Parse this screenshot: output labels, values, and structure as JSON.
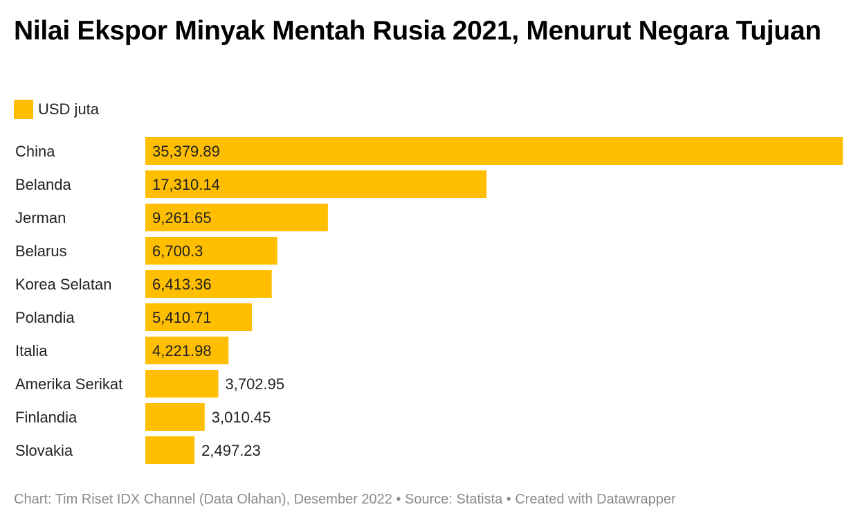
{
  "title": "Nilai Ekspor Minyak Mentah Rusia 2021, Menurut Negara Tujuan",
  "legend": {
    "label": "USD juta",
    "color": "#ffbf00"
  },
  "colors": {
    "bar": "#ffbf00",
    "label_text": "#222222",
    "footer_text": "#8a8a8a"
  },
  "chart_data": {
    "type": "bar",
    "orientation": "horizontal",
    "title": "Nilai Ekspor Minyak Mentah Rusia 2021, Menurut Negara Tujuan",
    "categories": [
      "China",
      "Belanda",
      "Jerman",
      "Belarus",
      "Korea Selatan",
      "Polandia",
      "Italia",
      "Amerika Serikat",
      "Finlandia",
      "Slovakia"
    ],
    "series": [
      {
        "name": "USD juta",
        "values": [
          35379.89,
          17310.14,
          9261.65,
          6700.3,
          6413.36,
          5410.71,
          4221.98,
          3702.95,
          3010.45,
          2497.23
        ],
        "labels": [
          "35,379.89",
          "17,310.14",
          "9,261.65",
          "6,700.3",
          "6,413.36",
          "5,410.71",
          "4,221.98",
          "3,702.95",
          "3,010.45",
          "2,497.23"
        ]
      }
    ],
    "xlim": [
      0,
      35379.89
    ],
    "grid": false,
    "legend_position": "top-left"
  },
  "footer": "Chart: Tim Riset IDX Channel (Data Olahan), Desember 2022 • Source: Statista • Created with Datawrapper"
}
